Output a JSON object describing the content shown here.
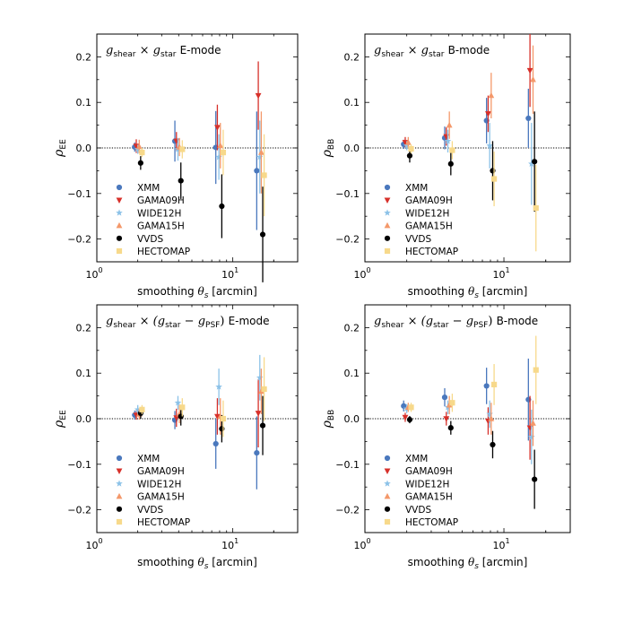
{
  "colors": {
    "XMM": "#4a78bd",
    "GAMA09H": "#d7302a",
    "WIDE12H": "#8cc2e8",
    "GAMA15H": "#f4986a",
    "VVDS": "#000000",
    "HECTOMAP": "#f7d98b",
    "zero_line": "#000000"
  },
  "markers": {
    "XMM": "circle",
    "GAMA09H": "triangle-down",
    "WIDE12H": "star",
    "GAMA15H": "triangle-up",
    "VVDS": "circle",
    "HECTOMAP": "square"
  },
  "chart_data": [
    {
      "type": "scatter",
      "panel": "top-left",
      "title": {
        "prefix": "g",
        "sub1": "shear",
        "times": "×",
        "mid": "g",
        "sub2": "star",
        "suffix": "E-mode"
      },
      "xlabel": "smoothing θs [arcmin]",
      "xlabel_parts": {
        "pre": "smoothing ",
        "theta": "θ",
        "sub": "s",
        "post": " [arcmin]"
      },
      "ylabel": {
        "rho": "ρ",
        "sub": "EE"
      },
      "xscale": "log",
      "xlim": [
        1,
        30
      ],
      "ylim": [
        -0.25,
        0.25
      ],
      "yticks": [
        "0.2",
        "0.1",
        "0.0",
        "−0.1",
        "−0.2"
      ],
      "ytick_values": [
        0.2,
        0.1,
        0.0,
        -0.1,
        -0.2
      ],
      "xticks": [
        {
          "value": 1,
          "base": "10",
          "exp": "0"
        },
        {
          "value": 10,
          "base": "10",
          "exp": "1"
        }
      ],
      "legend_position": "lower-left",
      "series": [
        {
          "name": "XMM",
          "x": [
            1.9,
            3.75,
            7.5,
            15.0
          ],
          "y": [
            0.002,
            0.015,
            0.001,
            -0.05
          ],
          "err": [
            0.01,
            0.045,
            0.08,
            0.13
          ]
        },
        {
          "name": "GAMA09H",
          "x": [
            1.95,
            3.85,
            7.7,
            15.4
          ],
          "y": [
            0.004,
            0.015,
            0.045,
            0.115
          ],
          "err": [
            0.015,
            0.02,
            0.05,
            0.075
          ]
        },
        {
          "name": "WIDE12H",
          "x": [
            2.0,
            3.95,
            7.9,
            15.8
          ],
          "y": [
            -0.003,
            -0.003,
            -0.02,
            -0.02
          ],
          "err": [
            0.01,
            0.025,
            0.05,
            0.08
          ]
        },
        {
          "name": "GAMA15H",
          "x": [
            2.05,
            4.05,
            8.1,
            16.2
          ],
          "y": [
            0.003,
            0.002,
            0.005,
            -0.01
          ],
          "err": [
            0.015,
            0.02,
            0.05,
            0.09
          ]
        },
        {
          "name": "VVDS",
          "x": [
            2.1,
            4.15,
            8.3,
            16.6
          ],
          "y": [
            -0.033,
            -0.072,
            -0.128,
            -0.19
          ],
          "err": [
            0.015,
            0.04,
            0.07,
            0.105
          ]
        },
        {
          "name": "HECTOMAP",
          "x": [
            2.15,
            4.25,
            8.5,
            17.0
          ],
          "y": [
            -0.01,
            -0.003,
            -0.01,
            -0.06
          ],
          "err": [
            0.01,
            0.02,
            0.05,
            0.09
          ]
        }
      ]
    },
    {
      "type": "scatter",
      "panel": "top-right",
      "title": {
        "prefix": "g",
        "sub1": "shear",
        "times": "×",
        "mid": "g",
        "sub2": "star",
        "suffix": "B-mode"
      },
      "xlabel": "smoothing θs [arcmin]",
      "xlabel_parts": {
        "pre": "smoothing ",
        "theta": "θ",
        "sub": "s",
        "post": " [arcmin]"
      },
      "ylabel": {
        "rho": "ρ",
        "sub": "BB"
      },
      "xscale": "log",
      "xlim": [
        1,
        30
      ],
      "ylim": [
        -0.25,
        0.25
      ],
      "yticks": [
        "0.2",
        "0.1",
        "0.0",
        "−0.1",
        "−0.2"
      ],
      "ytick_values": [
        0.2,
        0.1,
        0.0,
        -0.1,
        -0.2
      ],
      "xticks": [
        {
          "value": 1,
          "base": "10",
          "exp": "0"
        },
        {
          "value": 10,
          "base": "10",
          "exp": "1"
        }
      ],
      "legend_position": "lower-left",
      "series": [
        {
          "name": "XMM",
          "x": [
            1.9,
            3.75,
            7.5,
            15.0
          ],
          "y": [
            0.008,
            0.022,
            0.06,
            0.065
          ],
          "err": [
            0.01,
            0.025,
            0.05,
            0.065
          ]
        },
        {
          "name": "GAMA09H",
          "x": [
            1.95,
            3.85,
            7.7,
            15.4
          ],
          "y": [
            0.012,
            0.025,
            0.075,
            0.17
          ],
          "err": [
            0.012,
            0.02,
            0.04,
            0.08
          ]
        },
        {
          "name": "WIDE12H",
          "x": [
            2.0,
            3.95,
            7.9,
            15.8
          ],
          "y": [
            0.005,
            0.015,
            0.005,
            -0.035
          ],
          "err": [
            0.01,
            0.025,
            0.05,
            0.09
          ]
        },
        {
          "name": "GAMA15H",
          "x": [
            2.05,
            4.05,
            8.1,
            16.2
          ],
          "y": [
            0.012,
            0.05,
            0.115,
            0.15
          ],
          "err": [
            0.012,
            0.03,
            0.05,
            0.075
          ]
        },
        {
          "name": "VVDS",
          "x": [
            2.1,
            4.15,
            8.3,
            16.6
          ],
          "y": [
            -0.017,
            -0.035,
            -0.05,
            -0.03
          ],
          "err": [
            0.015,
            0.025,
            0.065,
            0.11
          ]
        },
        {
          "name": "HECTOMAP",
          "x": [
            2.15,
            4.25,
            8.5,
            17.0
          ],
          "y": [
            -0.002,
            -0.005,
            -0.068,
            -0.132
          ],
          "err": [
            0.01,
            0.02,
            0.06,
            0.095
          ]
        }
      ]
    },
    {
      "type": "scatter",
      "panel": "bottom-left",
      "title": {
        "prefix": "g",
        "sub1": "shear",
        "times": "×",
        "mid": "(g",
        "sub2": "star",
        "minus": "−",
        "third": "g",
        "sub3": "PSF",
        "close": ")",
        "suffix": "E-mode"
      },
      "xlabel": "smoothing θs [arcmin]",
      "xlabel_parts": {
        "pre": "smoothing ",
        "theta": "θ",
        "sub": "s",
        "post": " [arcmin]"
      },
      "ylabel": {
        "rho": "ρ",
        "sub": "EE"
      },
      "xscale": "log",
      "xlim": [
        1,
        30
      ],
      "ylim": [
        -0.25,
        0.25
      ],
      "yticks": [
        "0.2",
        "0.1",
        "0.0",
        "−0.1",
        "−0.2"
      ],
      "ytick_values": [
        0.2,
        0.1,
        0.0,
        -0.1,
        -0.2
      ],
      "xticks": [
        {
          "value": 1,
          "base": "10",
          "exp": "0"
        },
        {
          "value": 10,
          "base": "10",
          "exp": "1"
        }
      ],
      "legend_position": "lower-left",
      "series": [
        {
          "name": "XMM",
          "x": [
            1.9,
            3.75,
            7.5,
            15.0
          ],
          "y": [
            0.008,
            -0.003,
            -0.055,
            -0.075
          ],
          "err": [
            0.01,
            0.02,
            0.055,
            0.08
          ]
        },
        {
          "name": "GAMA09H",
          "x": [
            1.95,
            3.85,
            7.7,
            15.4
          ],
          "y": [
            0.008,
            0.002,
            0.005,
            0.012
          ],
          "err": [
            0.01,
            0.02,
            0.04,
            0.075
          ]
        },
        {
          "name": "WIDE12H",
          "x": [
            2.0,
            3.95,
            7.9,
            15.8
          ],
          "y": [
            0.02,
            0.035,
            0.07,
            0.09
          ],
          "err": [
            0.01,
            0.015,
            0.04,
            0.05
          ]
        },
        {
          "name": "GAMA15H",
          "x": [
            2.05,
            4.05,
            8.1,
            16.2
          ],
          "y": [
            0.01,
            0.01,
            0.005,
            0.06
          ],
          "err": [
            0.012,
            0.02,
            0.04,
            0.05
          ]
        },
        {
          "name": "VVDS",
          "x": [
            2.1,
            4.15,
            8.3,
            16.6
          ],
          "y": [
            0.012,
            0.005,
            -0.022,
            -0.015
          ],
          "err": [
            0.012,
            0.02,
            0.03,
            0.065
          ]
        },
        {
          "name": "HECTOMAP",
          "x": [
            2.15,
            4.25,
            8.5,
            17.0
          ],
          "y": [
            0.02,
            0.025,
            0.0,
            0.065
          ],
          "err": [
            0.01,
            0.02,
            0.04,
            0.07
          ]
        }
      ]
    },
    {
      "type": "scatter",
      "panel": "bottom-right",
      "title": {
        "prefix": "g",
        "sub1": "shear",
        "times": "×",
        "mid": "(g",
        "sub2": "star",
        "minus": "−",
        "third": "g",
        "sub3": "PSF",
        "close": ")",
        "suffix": "B-mode"
      },
      "xlabel": "smoothing θs [arcmin]",
      "xlabel_parts": {
        "pre": "smoothing ",
        "theta": "θ",
        "sub": "s",
        "post": " [arcmin]"
      },
      "ylabel": {
        "rho": "ρ",
        "sub": "BB"
      },
      "xscale": "log",
      "xlim": [
        1,
        30
      ],
      "ylim": [
        -0.25,
        0.25
      ],
      "yticks": [
        "0.2",
        "0.1",
        "0.0",
        "−0.1",
        "−0.2"
      ],
      "ytick_values": [
        0.2,
        0.1,
        0.0,
        -0.1,
        -0.2
      ],
      "xticks": [
        {
          "value": 1,
          "base": "10",
          "exp": "0"
        },
        {
          "value": 10,
          "base": "10",
          "exp": "1"
        }
      ],
      "legend_position": "lower-left",
      "series": [
        {
          "name": "XMM",
          "x": [
            1.9,
            3.75,
            7.5,
            15.0
          ],
          "y": [
            0.028,
            0.047,
            0.072,
            0.042
          ],
          "err": [
            0.012,
            0.02,
            0.04,
            0.09
          ]
        },
        {
          "name": "GAMA09H",
          "x": [
            1.95,
            3.85,
            7.7,
            15.4
          ],
          "y": [
            0.003,
            0.0,
            -0.005,
            -0.02
          ],
          "err": [
            0.01,
            0.015,
            0.03,
            0.07
          ]
        },
        {
          "name": "WIDE12H",
          "x": [
            2.0,
            3.95,
            7.9,
            15.8
          ],
          "y": [
            0.022,
            0.025,
            0.01,
            -0.04
          ],
          "err": [
            0.01,
            0.015,
            0.03,
            0.06
          ]
        },
        {
          "name": "GAMA15H",
          "x": [
            2.05,
            4.05,
            8.1,
            16.2
          ],
          "y": [
            0.025,
            0.03,
            0.0,
            -0.01
          ],
          "err": [
            0.01,
            0.02,
            0.035,
            0.05
          ]
        },
        {
          "name": "VVDS",
          "x": [
            2.1,
            4.15,
            8.3,
            16.6
          ],
          "y": [
            -0.002,
            -0.02,
            -0.057,
            -0.133
          ],
          "err": [
            0.008,
            0.015,
            0.03,
            0.065
          ]
        },
        {
          "name": "HECTOMAP",
          "x": [
            2.15,
            4.25,
            8.5,
            17.0
          ],
          "y": [
            0.025,
            0.035,
            0.075,
            0.107
          ],
          "err": [
            0.01,
            0.02,
            0.045,
            0.075
          ]
        }
      ]
    }
  ]
}
